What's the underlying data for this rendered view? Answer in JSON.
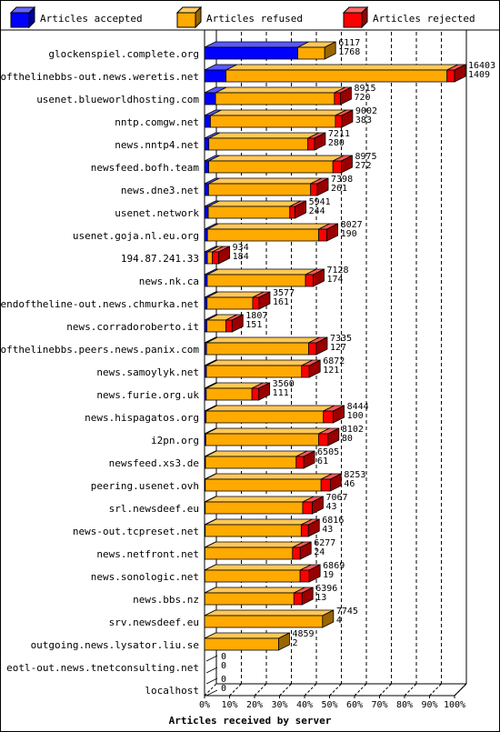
{
  "chart_data": {
    "type": "bar",
    "orientation": "horizontal",
    "stacked": true,
    "percent_scale": true,
    "xlabel": "Articles received by server",
    "xticks": [
      "0%",
      "10%",
      "20%",
      "30%",
      "40%",
      "50%",
      "60%",
      "70%",
      "80%",
      "90%",
      "100%"
    ],
    "legend_position": "top",
    "legend": [
      {
        "name": "Articles accepted",
        "color": "#0000ff"
      },
      {
        "name": "Articles refused",
        "color": "#ffaa00"
      },
      {
        "name": "Articles rejected",
        "color": "#ff0000"
      }
    ],
    "servers": [
      {
        "name": "glockenspiel.complete.org",
        "accepted": 6117,
        "refused": 1768,
        "rejected": 0,
        "label_top": "6117",
        "label_bottom": "1768"
      },
      {
        "name": "endofthelinebbs-out.news.weretis.net",
        "accepted": 1409,
        "refused": 14500,
        "rejected": 494,
        "label_top": "16403",
        "label_bottom": "1409"
      },
      {
        "name": "usenet.blueworldhosting.com",
        "accepted": 720,
        "refused": 7800,
        "rejected": 395,
        "label_top": "8915",
        "label_bottom": "720"
      },
      {
        "name": "nntp.comgw.net",
        "accepted": 383,
        "refused": 8200,
        "rejected": 419,
        "label_top": "9002",
        "label_bottom": "383"
      },
      {
        "name": "news.nntp4.net",
        "accepted": 280,
        "refused": 6500,
        "rejected": 431,
        "label_top": "7211",
        "label_bottom": "280"
      },
      {
        "name": "newsfeed.bofh.team",
        "accepted": 272,
        "refused": 8150,
        "rejected": 553,
        "label_top": "8975",
        "label_bottom": "272"
      },
      {
        "name": "news.dne3.net",
        "accepted": 261,
        "refused": 6700,
        "rejected": 437,
        "label_top": "7398",
        "label_bottom": "261"
      },
      {
        "name": "usenet.network",
        "accepted": 244,
        "refused": 5350,
        "rejected": 347,
        "label_top": "5941",
        "label_bottom": "244"
      },
      {
        "name": "usenet.goja.nl.eu.org",
        "accepted": 190,
        "refused": 7300,
        "rejected": 537,
        "label_top": "8027",
        "label_bottom": "190"
      },
      {
        "name": "194.87.241.33",
        "accepted": 184,
        "refused": 320,
        "rejected": 430,
        "label_top": "934",
        "label_bottom": "184"
      },
      {
        "name": "news.nk.ca",
        "accepted": 174,
        "refused": 6450,
        "rejected": 504,
        "label_top": "7128",
        "label_bottom": "174"
      },
      {
        "name": "endoftheline-out.news.chmurka.net",
        "accepted": 161,
        "refused": 3000,
        "rejected": 416,
        "label_top": "3577",
        "label_bottom": "161"
      },
      {
        "name": "news.corradoroberto.it",
        "accepted": 151,
        "refused": 1250,
        "rejected": 406,
        "label_top": "1807",
        "label_bottom": "151"
      },
      {
        "name": "endofthelinebbs.peers.news.panix.com",
        "accepted": 127,
        "refused": 6700,
        "rejected": 508,
        "label_top": "7335",
        "label_bottom": "127"
      },
      {
        "name": "news.samoylyk.net",
        "accepted": 121,
        "refused": 6250,
        "rejected": 501,
        "label_top": "6872",
        "label_bottom": "121"
      },
      {
        "name": "news.furie.org.uk",
        "accepted": 111,
        "refused": 3000,
        "rejected": 449,
        "label_top": "3560",
        "label_bottom": "111"
      },
      {
        "name": "news.hispagatos.org",
        "accepted": 100,
        "refused": 7700,
        "rejected": 644,
        "label_top": "8444",
        "label_bottom": "100"
      },
      {
        "name": "i2pn.org",
        "accepted": 80,
        "refused": 7400,
        "rejected": 622,
        "label_top": "8102",
        "label_bottom": "80"
      },
      {
        "name": "newsfeed.xs3.de",
        "accepted": 61,
        "refused": 5950,
        "rejected": 494,
        "label_top": "6505",
        "label_bottom": "61"
      },
      {
        "name": "peering.usenet.ovh",
        "accepted": 46,
        "refused": 7600,
        "rejected": 607,
        "label_top": "8253",
        "label_bottom": "46"
      },
      {
        "name": "srl.newsdeef.eu",
        "accepted": 43,
        "refused": 6400,
        "rejected": 624,
        "label_top": "7067",
        "label_bottom": "43"
      },
      {
        "name": "news-out.tcpreset.net",
        "accepted": 43,
        "refused": 6300,
        "rejected": 473,
        "label_top": "6816",
        "label_bottom": "43"
      },
      {
        "name": "news.netfront.net",
        "accepted": 24,
        "refused": 5750,
        "rejected": 503,
        "label_top": "6277",
        "label_bottom": "24"
      },
      {
        "name": "news.sonologic.net",
        "accepted": 19,
        "refused": 6250,
        "rejected": 600,
        "label_top": "6869",
        "label_bottom": "19"
      },
      {
        "name": "news.bbs.nz",
        "accepted": 13,
        "refused": 5850,
        "rejected": 533,
        "label_top": "6396",
        "label_bottom": "13"
      },
      {
        "name": "srv.newsdeef.eu",
        "accepted": 4,
        "refused": 7741,
        "rejected": 0,
        "label_top": "7745",
        "label_bottom": "4"
      },
      {
        "name": "outgoing.news.lysator.liu.se",
        "accepted": 2,
        "refused": 4857,
        "rejected": 0,
        "label_top": "4859",
        "label_bottom": "2"
      },
      {
        "name": "eotl-out.news.tnetconsulting.net",
        "accepted": 0,
        "refused": 0,
        "rejected": 0,
        "label_top": "0",
        "label_bottom": "0"
      },
      {
        "name": "localhost",
        "accepted": 0,
        "refused": 0,
        "rejected": 0,
        "label_top": "0",
        "label_bottom": "0"
      }
    ]
  }
}
